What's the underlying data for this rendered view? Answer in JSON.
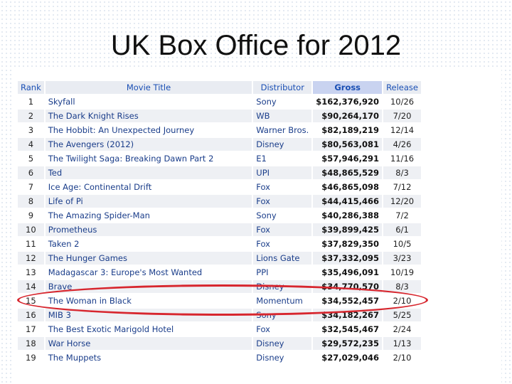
{
  "slide": {
    "title": "UK Box Office for 2012"
  },
  "table": {
    "headers": [
      "Rank",
      "Movie Title",
      "Distributor",
      "Gross",
      "Release"
    ],
    "rows": [
      [
        "1",
        "Skyfall",
        "Sony",
        "$162,376,920",
        "10/26"
      ],
      [
        "2",
        "The Dark Knight Rises",
        "WB",
        "$90,264,170",
        "7/20"
      ],
      [
        "3",
        "The Hobbit: An Unexpected Journey",
        "Warner Bros.",
        "$82,189,219",
        "12/14"
      ],
      [
        "4",
        "The Avengers (2012)",
        "Disney",
        "$80,563,081",
        "4/26"
      ],
      [
        "5",
        "The Twilight Saga: Breaking Dawn Part 2",
        "E1",
        "$57,946,291",
        "11/16"
      ],
      [
        "6",
        "Ted",
        "UPI",
        "$48,865,529",
        "8/3"
      ],
      [
        "7",
        "Ice Age: Continental Drift",
        "Fox",
        "$46,865,098",
        "7/12"
      ],
      [
        "8",
        "Life of Pi",
        "Fox",
        "$44,415,466",
        "12/20"
      ],
      [
        "9",
        "The Amazing Spider-Man",
        "Sony",
        "$40,286,388",
        "7/2"
      ],
      [
        "10",
        "Prometheus",
        "Fox",
        "$39,899,425",
        "6/1"
      ],
      [
        "11",
        "Taken 2",
        "Fox",
        "$37,829,350",
        "10/5"
      ],
      [
        "12",
        "The Hunger Games",
        "Lions Gate",
        "$37,332,095",
        "3/23"
      ],
      [
        "13",
        "Madagascar 3: Europe's Most Wanted",
        "PPI",
        "$35,496,091",
        "10/19"
      ],
      [
        "14",
        "Brave",
        "Disney",
        "$34,770,570",
        "8/3"
      ],
      [
        "15",
        "The Woman in Black",
        "Momentum",
        "$34,552,457",
        "2/10"
      ],
      [
        "16",
        "MIB 3",
        "Sony",
        "$34,182,267",
        "5/25"
      ],
      [
        "17",
        "The Best Exotic Marigold Hotel",
        "Fox",
        "$32,545,467",
        "2/24"
      ],
      [
        "18",
        "War Horse",
        "Disney",
        "$29,572,235",
        "1/13"
      ],
      [
        "19",
        "The Muppets",
        "Disney",
        "$27,029,046",
        "2/10"
      ]
    ],
    "highlighted_rank": "15"
  },
  "colors": {
    "header_link": "#1a4fb4",
    "gross_header_bg": "#c9d3f0",
    "highlight_oval": "#d7262e"
  }
}
